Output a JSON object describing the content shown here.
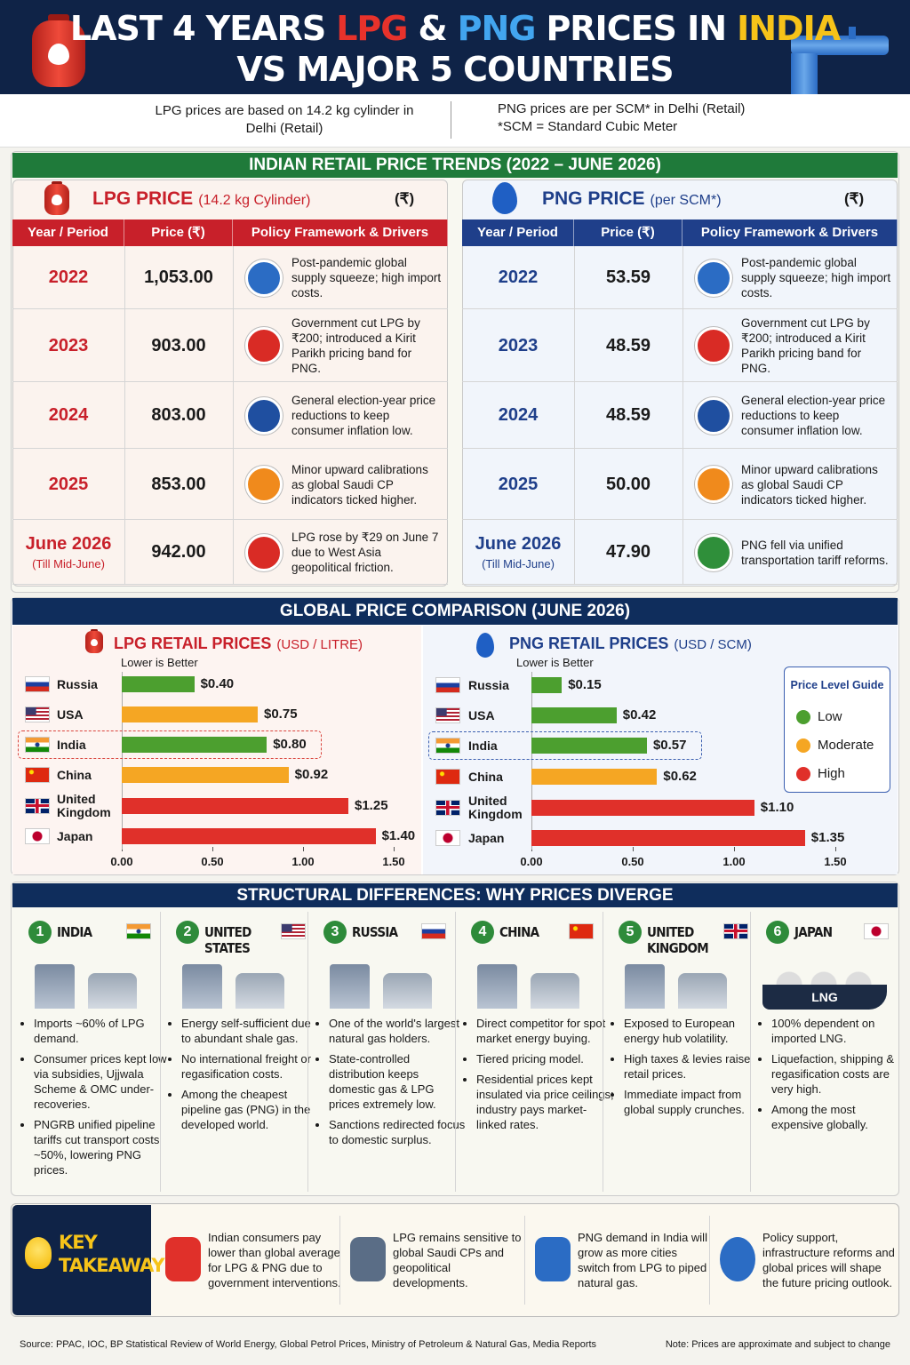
{
  "header": {
    "title_line1": [
      {
        "text": "LAST 4 YEARS",
        "color": "#ffffff"
      },
      {
        "text": "LPG",
        "color": "#e8322b"
      },
      {
        "text": "&",
        "color": "#ffffff"
      },
      {
        "text": "PNG",
        "color": "#42a5ef"
      },
      {
        "text": "PRICES IN",
        "color": "#ffffff"
      },
      {
        "text": "INDIA",
        "color": "#f6c319"
      }
    ],
    "title_line2": "VS MAJOR 5 COUNTRIES",
    "lpg_note": "LPG prices are based on 14.2 kg cylinder in Delhi (Retail)",
    "png_note": "PNG prices are per SCM* in Delhi (Retail)",
    "scm_note": "*SCM = Standard Cubic Meter"
  },
  "trends": {
    "title": "INDIAN RETAIL PRICE TRENDS (2022 – JUNE 2026)",
    "tables": [
      {
        "title": "LPG PRICE",
        "subtitle": "(14.2 kg Cylinder)",
        "currency": "(₹)",
        "color": "#c8202a",
        "columns": [
          "Year / Period",
          "Price (₹)",
          "Policy Framework & Drivers"
        ],
        "rows": [
          {
            "period": "2022",
            "price": "1,053.00",
            "note": "Post-pandemic global supply squeeze; high import costs."
          },
          {
            "period": "2023",
            "price": "903.00",
            "note": "Government cut LPG by ₹200; introduced a Kirit Parikh pricing band for PNG."
          },
          {
            "period": "2024",
            "price": "803.00",
            "note": "General election-year price reductions to keep consumer inflation low."
          },
          {
            "period": "2025",
            "price": "853.00",
            "note": "Minor upward calibrations as global Saudi CP indicators ticked higher."
          },
          {
            "period": "June 2026",
            "period_note": "(Till Mid-June)",
            "price": "942.00",
            "note": "LPG rose by ₹29 on June 7 due to West Asia geopolitical friction."
          }
        ]
      },
      {
        "title": "PNG PRICE",
        "subtitle": "(per SCM*)",
        "currency": "(₹)",
        "color": "#1f3f8a",
        "columns": [
          "Year / Period",
          "Price (₹)",
          "Policy Framework & Drivers"
        ],
        "rows": [
          {
            "period": "2022",
            "price": "53.59",
            "note": "Post-pandemic global supply squeeze; high import costs."
          },
          {
            "period": "2023",
            "price": "48.59",
            "note": "Government cut LPG by ₹200; introduced a Kirit Parikh pricing band for PNG."
          },
          {
            "period": "2024",
            "price": "48.59",
            "note": "General election-year price reductions to keep consumer inflation low."
          },
          {
            "period": "2025",
            "price": "50.00",
            "note": "Minor upward calibrations as global Saudi CP indicators ticked higher."
          },
          {
            "period": "June 2026",
            "period_note": "(Till Mid-June)",
            "price": "47.90",
            "note": "PNG fell via unified transportation tariff reforms."
          }
        ]
      }
    ]
  },
  "global_title": "GLOBAL PRICE COMPARISON (JUNE 2026)",
  "chart_data": [
    {
      "type": "bar",
      "orientation": "horizontal",
      "title": "LPG RETAIL PRICES",
      "unit": "(USD / LITRE)",
      "subtitle": "Lower is Better",
      "title_color": "#c8202a",
      "categories": [
        "Russia",
        "USA",
        "India",
        "China",
        "United Kingdom",
        "Japan"
      ],
      "values": [
        0.4,
        0.75,
        0.8,
        0.92,
        1.25,
        1.4
      ],
      "value_labels": [
        "$0.40",
        "$0.75",
        "$0.80",
        "$0.92",
        "$1.25",
        "$1.40"
      ],
      "colors": [
        "#4c9f2f",
        "#f5a623",
        "#4c9f2f",
        "#f5a623",
        "#e0302a",
        "#e0302a"
      ],
      "highlight": "India",
      "highlight_color": "#d9453e",
      "xlim": [
        0,
        1.5
      ],
      "xticks": [
        {
          "value": 0,
          "label": "0.00"
        },
        {
          "value": 0.5,
          "label": "0.50"
        },
        {
          "value": 1,
          "label": "1.00"
        },
        {
          "value": 1.5,
          "label": "1.50"
        }
      ]
    },
    {
      "type": "bar",
      "orientation": "horizontal",
      "title": "PNG RETAIL PRICES",
      "unit": "(USD / SCM)",
      "subtitle": "Lower is Better",
      "title_color": "#1f3f8a",
      "categories": [
        "Russia",
        "USA",
        "India",
        "China",
        "United Kingdom",
        "Japan"
      ],
      "values": [
        0.15,
        0.42,
        0.57,
        0.62,
        1.1,
        1.35
      ],
      "value_labels": [
        "$0.15",
        "$0.42",
        "$0.57",
        "$0.62",
        "$1.10",
        "$1.35"
      ],
      "colors": [
        "#4c9f2f",
        "#4c9f2f",
        "#4c9f2f",
        "#f5a623",
        "#e0302a",
        "#e0302a"
      ],
      "highlight": "India",
      "highlight_color": "#3b5fb0",
      "xlim": [
        0,
        1.5
      ],
      "xticks": [
        {
          "value": 0,
          "label": "0.00"
        },
        {
          "value": 0.5,
          "label": "0.50"
        },
        {
          "value": 1,
          "label": "1.00"
        },
        {
          "value": 1.5,
          "label": "1.50"
        }
      ],
      "legend": {
        "title": "Price Level Guide",
        "items": [
          {
            "name": "Low",
            "color": "#4c9f2f"
          },
          {
            "name": "Moderate",
            "color": "#f5a623"
          },
          {
            "name": "High",
            "color": "#e0302a"
          }
        ]
      }
    }
  ],
  "structural": {
    "title": "STRUCTURAL DIFFERENCES: WHY PRICES DIVERGE",
    "countries": [
      {
        "number": 1,
        "name": "INDIA",
        "bullets": [
          "Imports ~60% of LPG demand.",
          "Consumer prices kept low via subsidies, Ujjwala Scheme & OMC under-recoveries.",
          "PNGRB unified pipeline tariffs cut transport costs ~50%, lowering PNG prices."
        ]
      },
      {
        "number": 2,
        "name": "UNITED STATES",
        "bullets": [
          "Energy self-sufficient due to abundant shale gas.",
          "No international freight or regasification costs.",
          "Among the cheapest pipeline gas (PNG) in the developed world."
        ]
      },
      {
        "number": 3,
        "name": "RUSSIA",
        "bullets": [
          "One of the world's largest natural gas holders.",
          "State-controlled distribution keeps domestic gas & LPG prices extremely low.",
          "Sanctions redirected focus to domestic surplus."
        ]
      },
      {
        "number": 4,
        "name": "CHINA",
        "bullets": [
          "Direct competitor for spot market energy buying.",
          "Tiered pricing model.",
          "Residential prices kept insulated via price ceilings; industry pays market-linked rates."
        ]
      },
      {
        "number": 5,
        "name": "UNITED KINGDOM",
        "bullets": [
          "Exposed to European energy hub volatility.",
          "High taxes & levies raise retail prices.",
          "Immediate impact from global supply crunches."
        ]
      },
      {
        "number": 6,
        "name": "JAPAN",
        "icon_label": "LNG",
        "bullets": [
          "100% dependent on imported LNG.",
          "Liquefaction, shipping & regasification costs are very high.",
          "Among the most expensive globally."
        ]
      }
    ]
  },
  "key_takeaway": {
    "title": "KEY TAKEAWAY",
    "items": [
      "Indian consumers pay lower than global average for LPG & PNG due to government interventions.",
      "LPG remains sensitive to global Saudi CPs and geopolitical developments.",
      "PNG demand in India will grow as more cities switch from LPG to piped natural gas.",
      "Policy support, infrastructure reforms and global prices will shape the future pricing outlook."
    ]
  },
  "footer": {
    "source": "Source: PPAC, IOC, BP Statistical Review of World Energy, Global Petrol Prices, Ministry of Petroleum & Natural Gas, Media Reports",
    "note": "Note: Prices are approximate and subject to change"
  }
}
